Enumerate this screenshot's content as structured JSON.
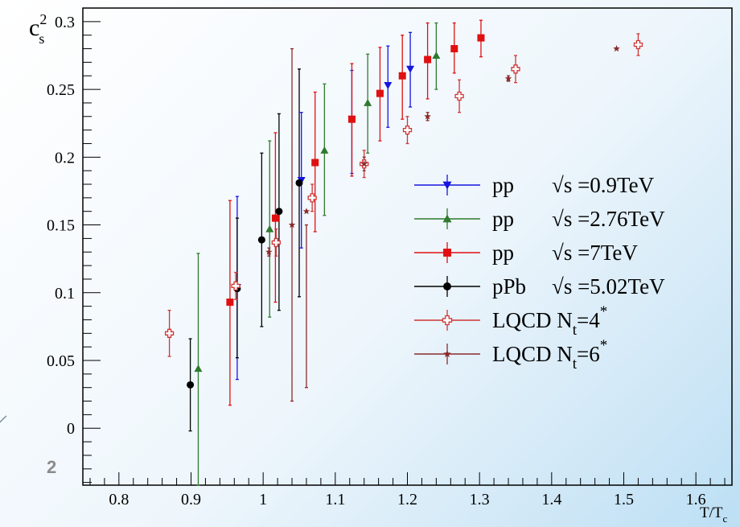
{
  "decor": {
    "side_number": "2",
    "side_mark": "/"
  },
  "chart_data": {
    "type": "scatter",
    "xlabel_main": "T/T",
    "xlabel_sub": "c",
    "ylabel_main": "c",
    "ylabel_sup": "2",
    "ylabel_sub": "s",
    "xlim": [
      0.75,
      1.65
    ],
    "ylim": [
      -0.042,
      0.31
    ],
    "x_ticks": [
      0.8,
      0.9,
      1,
      1.1,
      1.2,
      1.3,
      1.4,
      1.5,
      1.6
    ],
    "x_tick_labels": [
      "0.8",
      "0.9",
      "1",
      "1.1",
      "1.2",
      "1.3",
      "1.4",
      "1.5",
      "1.6"
    ],
    "y_ticks": [
      0,
      0.05,
      0.1,
      0.15,
      0.2,
      0.25,
      0.3
    ],
    "y_tick_labels": [
      "0",
      "0.05",
      "0.1",
      "0.15",
      "0.2",
      "0.25",
      "0.3"
    ],
    "grid": false,
    "legend_position": "center-right",
    "series": [
      {
        "name": "pp  √s =0.9TeV",
        "legend_a": "pp",
        "legend_b": "√s =0.9TeV",
        "color": "#1515e0",
        "marker": "triangle-down",
        "points": [
          {
            "x": 0.964,
            "y": 0.104,
            "lo": 0.036,
            "hi": 0.171
          },
          {
            "x": 1.053,
            "y": 0.183,
            "lo": 0.133,
            "hi": 0.233
          },
          {
            "x": 1.123,
            "y": 0.228,
            "lo": 0.188,
            "hi": 0.264
          },
          {
            "x": 1.173,
            "y": 0.253,
            "lo": 0.222,
            "hi": 0.282
          },
          {
            "x": 1.204,
            "y": 0.265,
            "lo": 0.237,
            "hi": 0.292
          }
        ]
      },
      {
        "name": "pp  √s =2.76TeV",
        "legend_a": "pp",
        "legend_b": "√s =2.76TeV",
        "color": "#2f7a2f",
        "marker": "triangle-up",
        "points": [
          {
            "x": 0.91,
            "y": 0.044,
            "lo": -0.042,
            "hi": 0.129
          },
          {
            "x": 1.009,
            "y": 0.147,
            "lo": 0.082,
            "hi": 0.212
          },
          {
            "x": 1.085,
            "y": 0.205,
            "lo": 0.157,
            "hi": 0.254
          },
          {
            "x": 1.145,
            "y": 0.24,
            "lo": 0.203,
            "hi": 0.276
          },
          {
            "x": 1.24,
            "y": 0.275,
            "lo": 0.25,
            "hi": 0.299
          }
        ]
      },
      {
        "name": "pp  √s =7TeV",
        "legend_a": "pp",
        "legend_b": "√s =7TeV",
        "color": "#e01010",
        "marker": "square",
        "points": [
          {
            "x": 0.954,
            "y": 0.093,
            "lo": 0.017,
            "hi": 0.168
          },
          {
            "x": 1.017,
            "y": 0.155,
            "lo": 0.093,
            "hi": 0.218
          },
          {
            "x": 1.072,
            "y": 0.196,
            "lo": 0.145,
            "hi": 0.248
          },
          {
            "x": 1.123,
            "y": 0.228,
            "lo": 0.186,
            "hi": 0.269
          },
          {
            "x": 1.162,
            "y": 0.247,
            "lo": 0.212,
            "hi": 0.281
          },
          {
            "x": 1.193,
            "y": 0.26,
            "lo": 0.228,
            "hi": 0.29
          },
          {
            "x": 1.228,
            "y": 0.272,
            "lo": 0.243,
            "hi": 0.299
          },
          {
            "x": 1.265,
            "y": 0.28,
            "lo": 0.262,
            "hi": 0.299
          },
          {
            "x": 1.302,
            "y": 0.288,
            "lo": 0.274,
            "hi": 0.301
          }
        ]
      },
      {
        "name": "pPb  √s =5.02TeV",
        "legend_a": "pPb",
        "legend_b": "√s =5.02TeV",
        "color": "#000000",
        "marker": "circle",
        "points": [
          {
            "x": 0.899,
            "y": 0.032,
            "lo": -0.002,
            "hi": 0.066
          },
          {
            "x": 0.964,
            "y": 0.103,
            "lo": 0.052,
            "hi": 0.155
          },
          {
            "x": 0.998,
            "y": 0.139,
            "lo": 0.075,
            "hi": 0.203
          },
          {
            "x": 1.022,
            "y": 0.16,
            "lo": 0.087,
            "hi": 0.232
          },
          {
            "x": 1.05,
            "y": 0.181,
            "lo": 0.097,
            "hi": 0.265
          }
        ]
      },
      {
        "name": "LQCD N_t=4*",
        "legend_a": "LQCD N",
        "legend_sub": "t",
        "legend_c": "=4",
        "legend_sup": "*",
        "color": "#d03535",
        "marker": "open-cross",
        "points": [
          {
            "x": 0.87,
            "y": 0.07,
            "lo": 0.053,
            "hi": 0.087
          },
          {
            "x": 0.962,
            "y": 0.105,
            "lo": 0.095,
            "hi": 0.115
          },
          {
            "x": 1.018,
            "y": 0.137,
            "lo": 0.127,
            "hi": 0.147
          },
          {
            "x": 1.068,
            "y": 0.17,
            "lo": 0.16,
            "hi": 0.18
          },
          {
            "x": 1.14,
            "y": 0.195,
            "lo": 0.185,
            "hi": 0.205
          },
          {
            "x": 1.2,
            "y": 0.22,
            "lo": 0.21,
            "hi": 0.23
          },
          {
            "x": 1.272,
            "y": 0.245,
            "lo": 0.233,
            "hi": 0.257
          },
          {
            "x": 1.35,
            "y": 0.265,
            "lo": 0.255,
            "hi": 0.275
          },
          {
            "x": 1.52,
            "y": 0.283,
            "lo": 0.275,
            "hi": 0.291
          }
        ]
      },
      {
        "name": "LQCD N_t=6*",
        "legend_a": "LQCD N",
        "legend_sub": "t",
        "legend_c": "=6",
        "legend_sup": "*",
        "color": "#8b2a2a",
        "marker": "star",
        "points": [
          {
            "x": 1.008,
            "y": 0.13,
            "lo": 0.127,
            "hi": 0.133
          },
          {
            "x": 1.04,
            "y": 0.15,
            "lo": 0.02,
            "hi": 0.28
          },
          {
            "x": 1.06,
            "y": 0.16,
            "lo": 0.03,
            "hi": 0.15
          },
          {
            "x": 1.14,
            "y": 0.195,
            "lo": 0.19,
            "hi": 0.2
          },
          {
            "x": 1.228,
            "y": 0.23,
            "lo": 0.227,
            "hi": 0.233
          },
          {
            "x": 1.34,
            "y": 0.258,
            "lo": 0.256,
            "hi": 0.26
          },
          {
            "x": 1.49,
            "y": 0.28,
            "lo": 0.28,
            "hi": 0.28
          }
        ]
      }
    ]
  }
}
